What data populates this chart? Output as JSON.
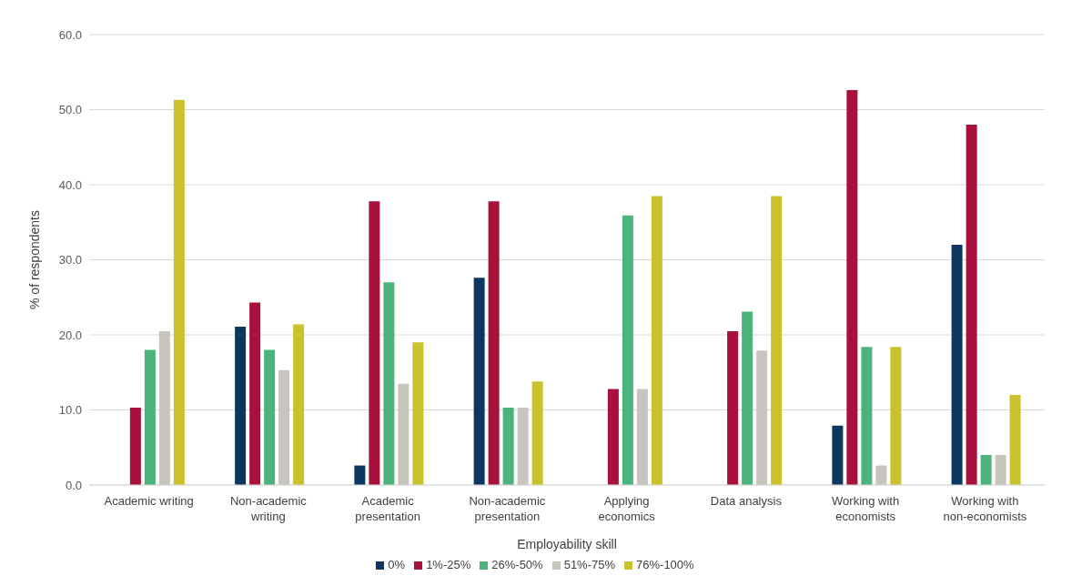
{
  "chart_data": {
    "type": "bar",
    "xlabel": "Employability skill",
    "ylabel": "% of respondents",
    "categories": [
      "Academic writing",
      "Non-academic writing",
      "Academic presentation",
      "Non-academic presentation",
      "Applying economics",
      "Data analysis",
      "Working with economists",
      "Working with non-economists"
    ],
    "series": [
      {
        "name": "0%",
        "color": "#0b3760",
        "values": [
          0,
          21.1,
          2.6,
          27.6,
          0,
          0,
          7.9,
          32.0
        ]
      },
      {
        "name": "1%-25%",
        "color": "#a8113c",
        "values": [
          10.3,
          24.3,
          37.8,
          37.8,
          12.8,
          20.5,
          52.6,
          48.0
        ]
      },
      {
        "name": "26%-50%",
        "color": "#4bb37c",
        "values": [
          18.0,
          18.0,
          27.0,
          10.3,
          35.9,
          23.1,
          18.4,
          4.0
        ]
      },
      {
        "name": "51%-75%",
        "color": "#c8c4be",
        "values": [
          20.5,
          15.3,
          13.5,
          10.3,
          12.8,
          17.9,
          2.6,
          4.0
        ]
      },
      {
        "name": "76%-100%",
        "color": "#c9c22c",
        "values": [
          51.3,
          21.4,
          19.0,
          13.8,
          38.5,
          38.5,
          18.4,
          12.0
        ]
      }
    ],
    "ylim": [
      0,
      60
    ],
    "yticks": [
      {
        "value": 0,
        "label": "0.0"
      },
      {
        "value": 10,
        "label": "10.0"
      },
      {
        "value": 20,
        "label": "20.0"
      },
      {
        "value": 30,
        "label": "30.0"
      },
      {
        "value": 40,
        "label": "40.0"
      },
      {
        "value": 50,
        "label": "50.0"
      },
      {
        "value": 60,
        "label": "60.0"
      }
    ],
    "grid": "y",
    "legend": "bottom"
  }
}
